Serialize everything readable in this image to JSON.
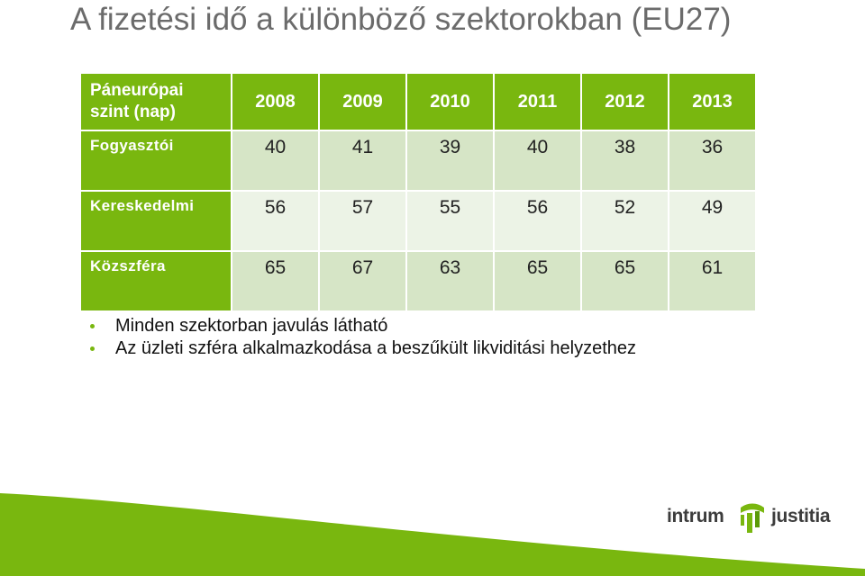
{
  "title": "A fizetési idő a különböző szektorokban (EU27)",
  "table": {
    "corner": [
      "Páneurópai",
      "szint (nap)"
    ],
    "years": [
      "2008",
      "2009",
      "2010",
      "2011",
      "2012",
      "2013"
    ],
    "rows": [
      {
        "label": "Fogyasztói",
        "values": [
          "40",
          "41",
          "39",
          "40",
          "38",
          "36"
        ]
      },
      {
        "label": "Kereskedelmi",
        "values": [
          "56",
          "57",
          "55",
          "56",
          "52",
          "49"
        ]
      },
      {
        "label": "Közszféra",
        "values": [
          "65",
          "67",
          "63",
          "65",
          "65",
          "61"
        ]
      }
    ]
  },
  "bullets": [
    "Minden szektorban javulás látható",
    "Az üzleti szféra alkalmazkodása a beszűkült likviditási helyzethez"
  ],
  "logo": {
    "word1": "intrum",
    "word2": "justitia"
  },
  "colors": {
    "accent": "#79b70f",
    "cell_dark": "#d6e5c6",
    "cell_light": "#ecf3e6",
    "title": "#6b6b6b"
  }
}
